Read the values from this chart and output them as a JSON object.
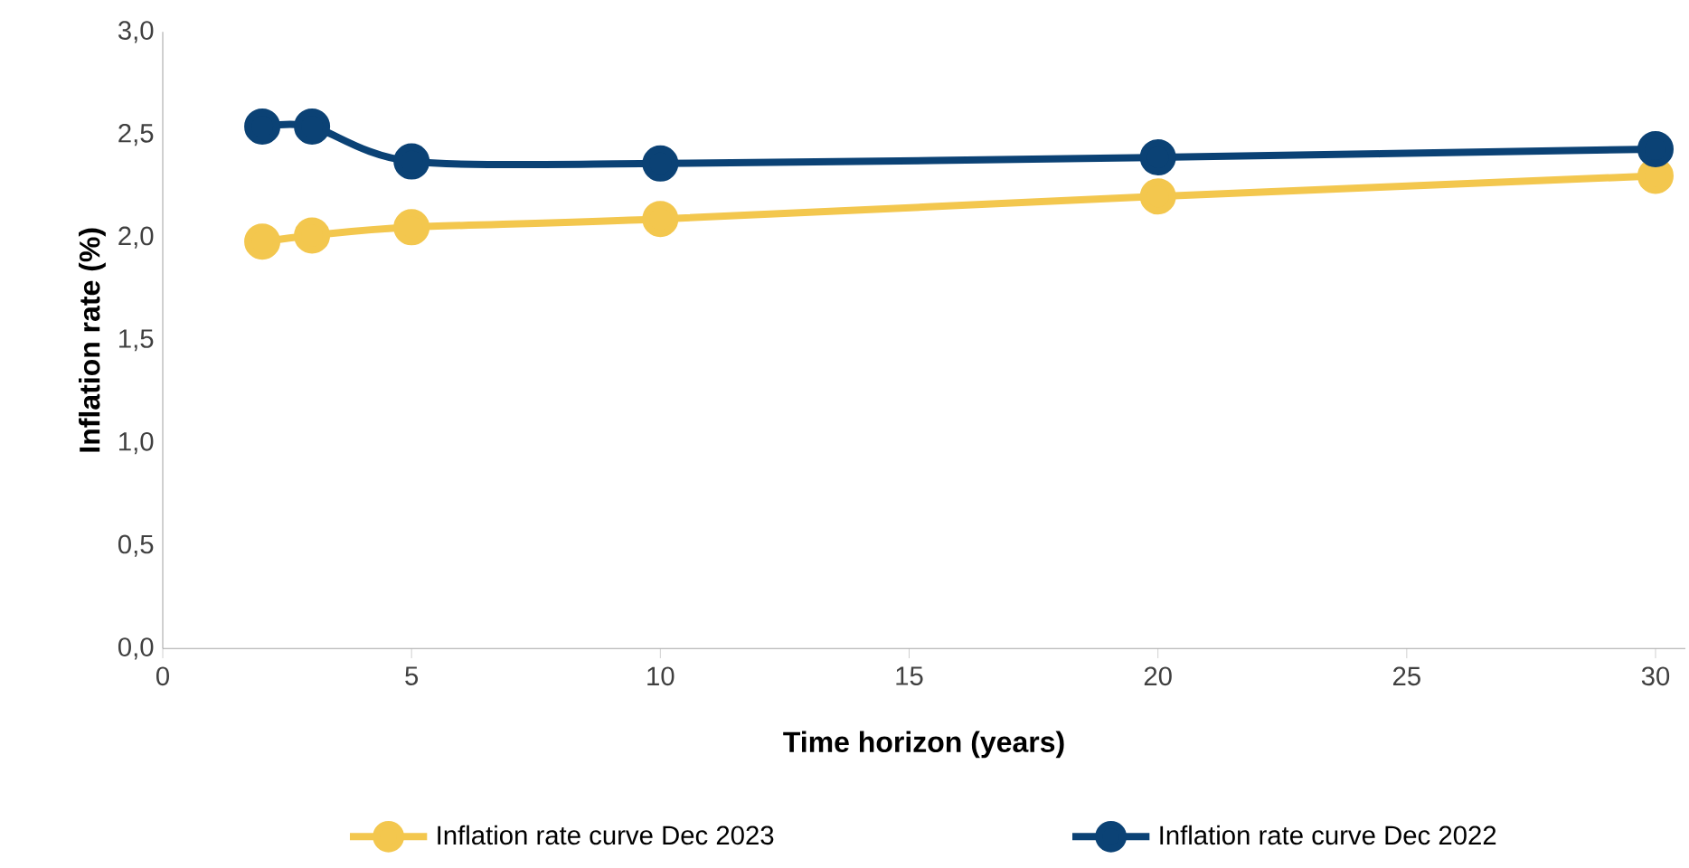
{
  "chart_data": {
    "type": "line",
    "xlabel": "Time horizon (years)",
    "ylabel": "Inflation rate (%)",
    "xlim": [
      0,
      30.6
    ],
    "xticks": [
      0,
      5,
      10,
      15,
      20,
      25,
      30
    ],
    "ylim": [
      0,
      3
    ],
    "yticks": [
      {
        "value": 0,
        "label": "0,0"
      },
      {
        "value": 0.5,
        "label": "0,5"
      },
      {
        "value": 1,
        "label": "1,0"
      },
      {
        "value": 1.5,
        "label": "1,5"
      },
      {
        "value": 2,
        "label": "2,0"
      },
      {
        "value": 2.5,
        "label": "2,5"
      },
      {
        "value": 3,
        "label": "3,0"
      }
    ],
    "x": [
      2,
      3,
      5,
      10,
      20,
      30
    ],
    "series": [
      {
        "name": "Inflation rate curve Dec 2023",
        "color": "#f3c74e",
        "values": [
          1.98,
          2.01,
          2.05,
          2.09,
          2.2,
          2.3
        ]
      },
      {
        "name": "Inflation rate curve Dec 2022",
        "color": "#0b4275",
        "values": [
          2.54,
          2.54,
          2.37,
          2.36,
          2.39,
          2.43
        ]
      }
    ],
    "marker": "circle",
    "line_style": "solid",
    "legend": "bottom",
    "grid": false
  }
}
